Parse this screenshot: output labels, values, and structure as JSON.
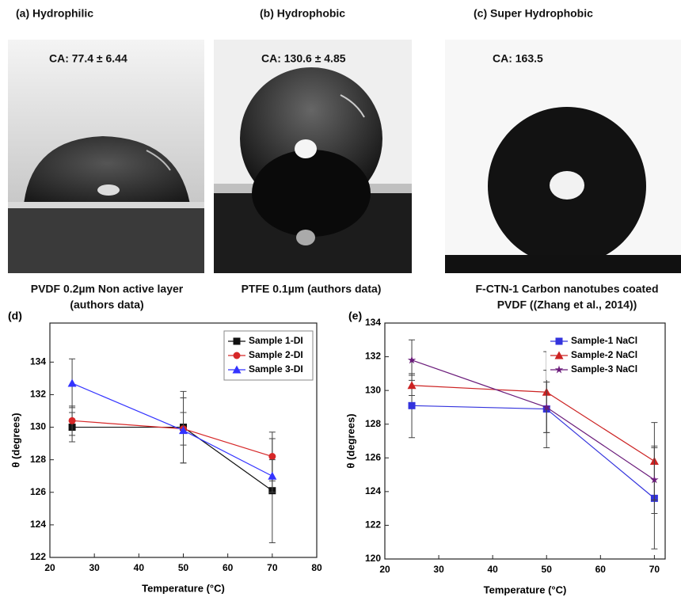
{
  "panels": [
    {
      "title": "(a) Hydrophilic",
      "ca": "CA: 77.4 ± 6.44",
      "caption": [
        "PVDF 0.2µm Non active layer",
        "(authors data)"
      ]
    },
    {
      "title": "(b) Hydrophobic",
      "ca": "CA: 130.6 ± 4.85",
      "caption": [
        "PTFE 0.1µm (authors data)"
      ]
    },
    {
      "title": "(c) Super Hydrophobic",
      "ca": "CA: 163.5",
      "caption": [
        "F-CTN-1 Carbon nanotubes coated",
        "PVDF ((Zhang et al., 2014))"
      ]
    }
  ],
  "chart_data": [
    {
      "type": "line",
      "panel_label": "(d)",
      "x_label": "Temperature (°C)",
      "y_label": "θ (degrees)",
      "x": [
        25,
        50,
        70
      ],
      "xlim": [
        20,
        80
      ],
      "xticks": [
        20,
        30,
        40,
        50,
        60,
        70,
        80
      ],
      "ylim": [
        122,
        136.4
      ],
      "yticks": [
        122,
        124,
        126,
        128,
        130,
        132,
        134
      ],
      "legend": "upper right",
      "series": [
        {
          "name": "Sample 1-DI",
          "color": "#111111",
          "marker": "square",
          "values": [
            130.0,
            130.0,
            126.1
          ],
          "errors": [
            0.9,
            2.2,
            3.2
          ]
        },
        {
          "name": "Sample 2-DI",
          "color": "#d62728",
          "marker": "circle",
          "values": [
            130.4,
            129.9,
            128.2
          ],
          "errors": [
            0.9,
            1.0,
            1.5
          ]
        },
        {
          "name": "Sample 3-DI",
          "color": "#3333ff",
          "marker": "triangle",
          "values": [
            132.7,
            129.8,
            127.0
          ],
          "errors": [
            1.5,
            2.0,
            1.0
          ]
        }
      ]
    },
    {
      "type": "line",
      "panel_label": "(e)",
      "x_label": "Temperature (°C)",
      "y_label": "θ (degrees)",
      "x": [
        25,
        50,
        70
      ],
      "xlim": [
        20,
        72
      ],
      "xticks": [
        20,
        30,
        40,
        50,
        60,
        70
      ],
      "ylim": [
        120,
        134
      ],
      "yticks": [
        120,
        122,
        124,
        126,
        128,
        130,
        132,
        134
      ],
      "legend": "upper right",
      "series": [
        {
          "name": "Sample-1 NaCl",
          "color": "#3333dd",
          "marker": "square",
          "values": [
            129.1,
            128.9,
            123.6
          ],
          "errors": [
            1.9,
            2.3,
            3.0
          ]
        },
        {
          "name": "Sample-2 NaCl",
          "color": "#cc2222",
          "marker": "triangle",
          "values": [
            130.3,
            129.9,
            125.8
          ],
          "errors": [
            0.6,
            2.4,
            2.3
          ]
        },
        {
          "name": "Sample-3 NaCl",
          "color": "#6a1b7a",
          "marker": "star",
          "values": [
            131.8,
            129.0,
            124.7
          ],
          "errors": [
            1.2,
            1.5,
            2.0
          ]
        }
      ]
    }
  ]
}
